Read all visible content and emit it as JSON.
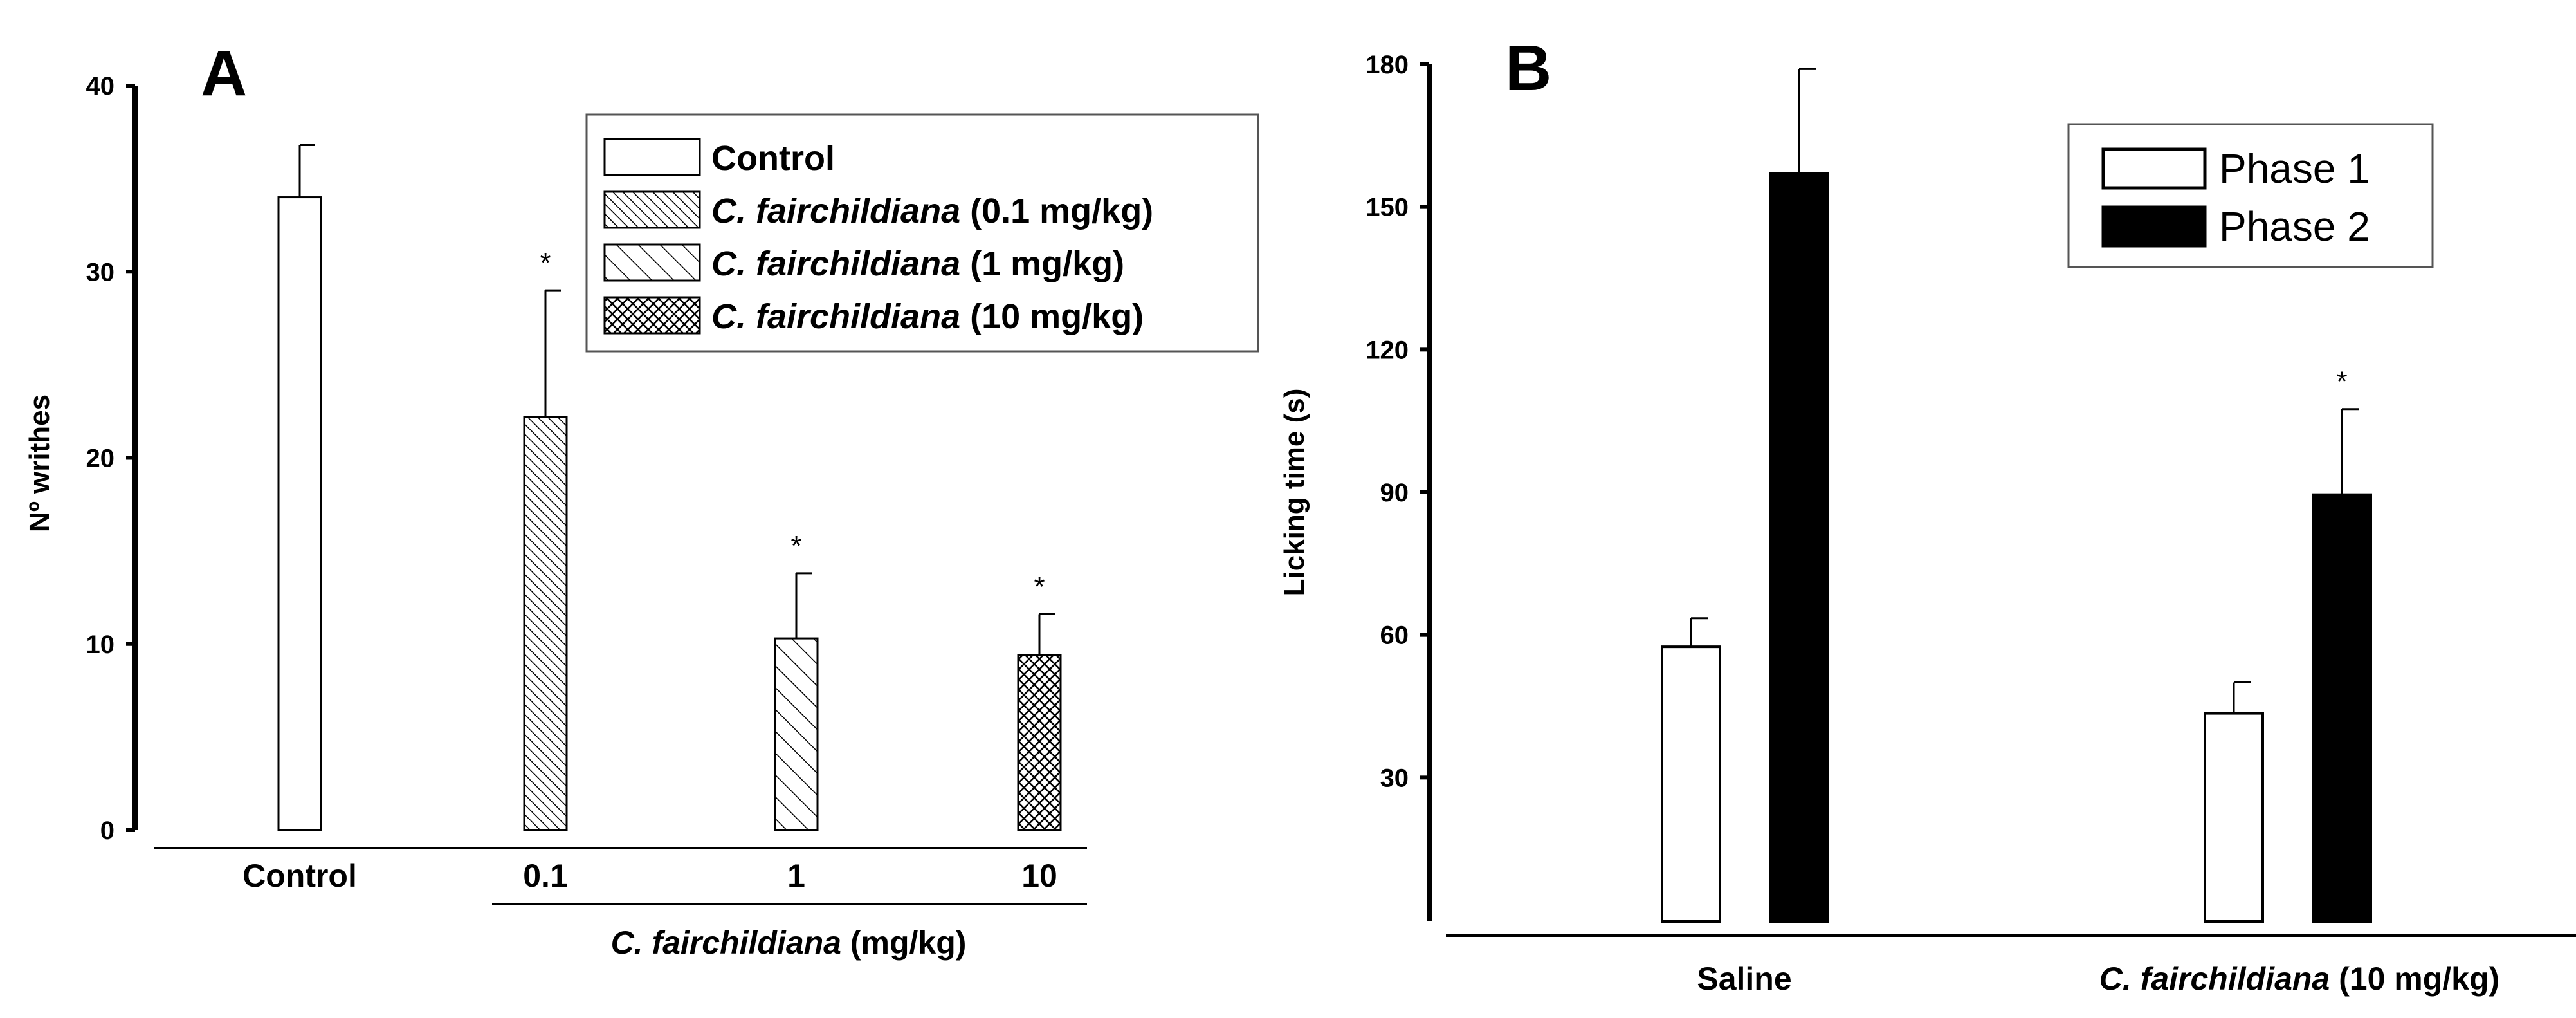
{
  "panels": {
    "A": {
      "label": "A"
    },
    "B": {
      "label": "B"
    }
  },
  "chart_data": [
    {
      "panel": "A",
      "type": "bar",
      "title": "",
      "xlabel": "",
      "group_label": {
        "italic": "C. fairchildiana",
        "rest": " (mg/kg)"
      },
      "ylabel": "Nº writhes",
      "ylim": [
        0,
        40
      ],
      "yticks": [
        "0",
        "10",
        "20",
        "30",
        "40"
      ],
      "categories": [
        "Control",
        "0.1",
        "1",
        "10"
      ],
      "values": [
        34,
        22.2,
        10.3,
        9.4
      ],
      "errors": [
        2.8,
        6.8,
        3.5,
        2.2
      ],
      "significance": [
        "",
        "*",
        "*",
        "*"
      ],
      "fills": [
        "open",
        "dense-diagonal",
        "sparse-diagonal",
        "crosshatch"
      ],
      "legend": [
        {
          "italic": "",
          "text": "Control",
          "fill": "open"
        },
        {
          "italic": "C. fairchildiana",
          "text": " (0.1 mg/kg)",
          "fill": "dense-diagonal"
        },
        {
          "italic": "C. fairchildiana",
          "text": " (1 mg/kg)",
          "fill": "sparse-diagonal"
        },
        {
          "italic": "C. fairchildiana",
          "text": " (10 mg/kg)",
          "fill": "crosshatch"
        }
      ]
    },
    {
      "panel": "B",
      "type": "bar",
      "title": "",
      "xlabel": "",
      "ylabel": "Licking time (s)",
      "ylim": [
        0,
        180
      ],
      "yticks": [
        "30",
        "60",
        "90",
        "120",
        "150",
        "180"
      ],
      "categories": [
        {
          "italic": "",
          "text": "Saline"
        },
        {
          "italic": "C. fairchildiana",
          "text": " (10 mg/kg)"
        }
      ],
      "series": [
        {
          "name": "Phase 1",
          "fill": "open",
          "values": [
            57.5,
            43.5
          ],
          "errors": [
            6,
            6.5
          ],
          "significance": [
            "",
            ""
          ]
        },
        {
          "name": "Phase 2",
          "fill": "solid",
          "values": [
            157,
            89.5
          ],
          "errors": [
            22,
            18
          ],
          "significance": [
            "",
            "*"
          ]
        }
      ]
    }
  ]
}
